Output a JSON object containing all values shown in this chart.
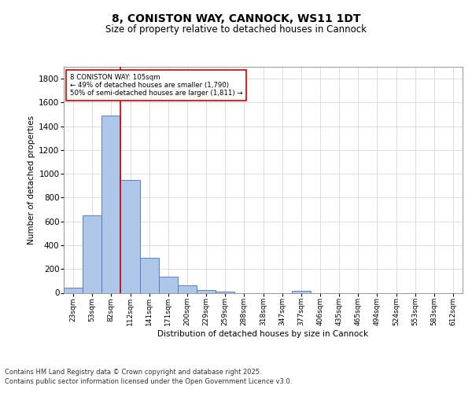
{
  "title": "8, CONISTON WAY, CANNOCK, WS11 1DT",
  "subtitle": "Size of property relative to detached houses in Cannock",
  "xlabel": "Distribution of detached houses by size in Cannock",
  "ylabel": "Number of detached properties",
  "bar_labels": [
    "23sqm",
    "53sqm",
    "82sqm",
    "112sqm",
    "141sqm",
    "171sqm",
    "200sqm",
    "229sqm",
    "259sqm",
    "288sqm",
    "318sqm",
    "347sqm",
    "377sqm",
    "406sqm",
    "435sqm",
    "465sqm",
    "494sqm",
    "524sqm",
    "553sqm",
    "583sqm",
    "612sqm"
  ],
  "bar_values": [
    45,
    650,
    1490,
    950,
    295,
    135,
    65,
    22,
    10,
    0,
    0,
    0,
    14,
    0,
    0,
    0,
    0,
    0,
    0,
    0,
    0
  ],
  "bar_color": "#aec6e8",
  "bar_edge_color": "#4472c4",
  "vline_color": "#cc0000",
  "vline_pos": 2.5,
  "annotation_text": "8 CONISTON WAY: 105sqm\n← 49% of detached houses are smaller (1,790)\n50% of semi-detached houses are larger (1,811) →",
  "annotation_box_color": "#ffffff",
  "annotation_box_edge": "#cc0000",
  "ylim": [
    0,
    1900
  ],
  "yticks": [
    0,
    200,
    400,
    600,
    800,
    1000,
    1200,
    1400,
    1600,
    1800
  ],
  "bg_color": "#ffffff",
  "grid_color": "#d0d0d0",
  "footer_line1": "Contains HM Land Registry data © Crown copyright and database right 2025.",
  "footer_line2": "Contains public sector information licensed under the Open Government Licence v3.0."
}
